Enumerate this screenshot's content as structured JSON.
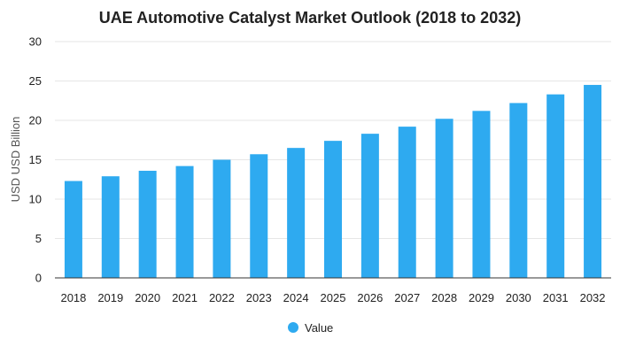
{
  "chart_data": {
    "type": "bar",
    "title": "UAE Automotive Catalyst Market Outlook (2018 to 2032)",
    "xlabel": "",
    "ylabel": "USD USD Billion",
    "categories": [
      "2018",
      "2019",
      "2020",
      "2021",
      "2022",
      "2023",
      "2024",
      "2025",
      "2026",
      "2027",
      "2028",
      "2029",
      "2030",
      "2031",
      "2032"
    ],
    "series": [
      {
        "name": "Value",
        "values": [
          12.3,
          12.9,
          13.6,
          14.2,
          15.0,
          15.7,
          16.5,
          17.4,
          18.3,
          19.2,
          20.2,
          21.2,
          22.2,
          23.3,
          24.5
        ]
      }
    ],
    "ylim": [
      0,
      30
    ],
    "yticks": [
      "0",
      "5",
      "10",
      "15",
      "20",
      "25",
      "30"
    ],
    "grid": true,
    "legend_position": "bottom-center",
    "colors": {
      "bar": "#2eaaf0",
      "grid": "#e6e6e6",
      "axis": "#333333",
      "text": "#222222"
    }
  }
}
